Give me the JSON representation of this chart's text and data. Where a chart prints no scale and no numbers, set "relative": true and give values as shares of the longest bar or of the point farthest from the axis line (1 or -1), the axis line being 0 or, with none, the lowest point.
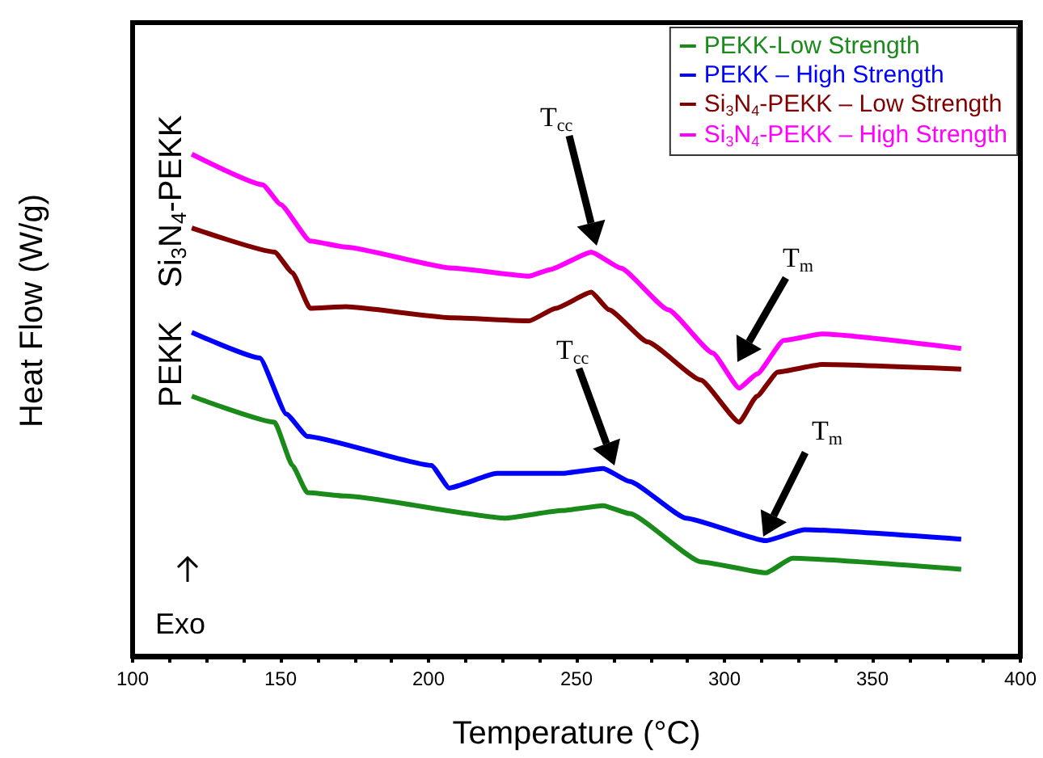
{
  "chart_data": {
    "type": "line",
    "xlabel": "Temperature (°C)",
    "ylabel": "Heat Flow (W/g)",
    "relative": true,
    "xlim": [
      100,
      400
    ],
    "xticks": [
      100,
      150,
      200,
      250,
      300,
      350,
      400
    ],
    "legend": "top right",
    "grid": false,
    "marker": "none",
    "line_style": "solid",
    "annotations": [
      "T$_{cc}$",
      "T$_{cc}$",
      "T$_{m}$",
      "T$_{m}$",
      "Si$_{3}$N$_{4}$-PEKK",
      "PEKK",
      "Exo"
    ],
    "series": [
      {
        "name": "PEKK-Low Strength",
        "color": "#1a8a1a",
        "x": [
          120,
          148,
          154,
          159,
          172,
          226,
          245,
          259,
          268,
          292,
          314,
          323,
          380
        ],
        "values": [
          0.518,
          0.466,
          0.38,
          0.326,
          0.319,
          0.275,
          0.29,
          0.3,
          0.284,
          0.188,
          0.166,
          0.195,
          0.173
        ]
      },
      {
        "name": "PEKK – High Strength",
        "color": "#0000ff",
        "x": [
          120,
          143,
          152,
          159,
          201,
          207,
          223,
          245,
          259,
          268,
          287,
          314,
          327,
          380
        ],
        "values": [
          0.645,
          0.594,
          0.482,
          0.438,
          0.38,
          0.335,
          0.364,
          0.364,
          0.374,
          0.348,
          0.275,
          0.23,
          0.252,
          0.233
        ]
      },
      {
        "name": "Si$_{3}$N$_{4}$-PEKK – Low Strength",
        "color": "#800000",
        "x": [
          120,
          148,
          154,
          160,
          172,
          208,
          234,
          243,
          255,
          261,
          274,
          292,
          305,
          311,
          318,
          333,
          380
        ],
        "values": [
          0.853,
          0.805,
          0.764,
          0.693,
          0.696,
          0.674,
          0.668,
          0.693,
          0.725,
          0.69,
          0.626,
          0.55,
          0.466,
          0.518,
          0.566,
          0.581,
          0.572
        ]
      },
      {
        "name": "Si$_{3}$N$_{4}$-PEKK – High Strength",
        "color": "#ff00ff",
        "x": [
          120,
          144,
          150,
          160,
          172,
          208,
          234,
          241,
          255,
          265,
          281,
          296,
          305,
          311,
          320,
          333,
          380
        ],
        "values": [
          1.0,
          0.939,
          0.9,
          0.827,
          0.815,
          0.773,
          0.757,
          0.77,
          0.805,
          0.773,
          0.69,
          0.604,
          0.534,
          0.562,
          0.629,
          0.642,
          0.613
        ]
      }
    ]
  }
}
